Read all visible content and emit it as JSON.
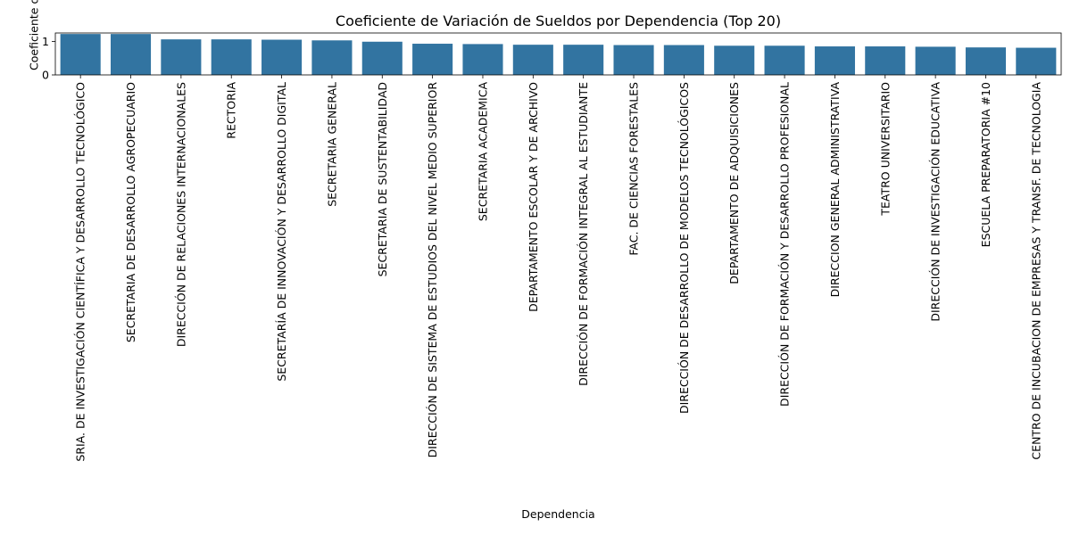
{
  "chart_data": {
    "type": "bar",
    "title": "Coeficiente de Variación de Sueldos por Dependencia (Top 20)",
    "xlabel": "Dependencia",
    "ylabel": "Coeficiente de Variación",
    "ylim": [
      0,
      1.25
    ],
    "yticks": [
      "0",
      "1"
    ],
    "grid": false,
    "bar_color": "#3274a1",
    "categories": [
      "SRIA. DE INVESTIGACIÓN CIENTÍFICA Y DESARROLLO TECNOLÓGICO",
      "SECRETARIA DE DESARROLLO AGROPECUARIO",
      "DIRECCIÓN DE RELACIONES INTERNACIONALES",
      "RECTORIA",
      "SECRETARÍA DE INNOVACIÓN Y DESARROLLO DIGITAL",
      "SECRETARIA GENERAL",
      "SECRETARIA DE SUSTENTABILIDAD",
      "DIRECCIÓN DE SISTEMA DE ESTUDIOS DEL NIVEL MEDIO SUPERIOR",
      "SECRETARIA ACADEMICA",
      "DEPARTAMENTO ESCOLAR Y DE ARCHIVO",
      "DIRECCIÓN DE FORMACIÓN INTEGRAL AL ESTUDIANTE",
      "FAC. DE CIENCIAS FORESTALES",
      "DIRECCIÓN DE DESARROLLO DE MODELOS TECNOLÓGICOS",
      "DEPARTAMENTO DE ADQUISICIONES",
      "DIRECCIÓN DE FORMACIÓN Y DESARROLLO PROFESIONAL",
      "DIRECCION GENERAL ADMINISTRATIVA",
      "TEATRO UNIVERSITARIO",
      "DIRECCIÓN DE INVESTIGACIÓN EDUCATIVA",
      "ESCUELA PREPARATORIA #10",
      "CENTRO DE INCUBACION DE EMPRESAS Y TRANSF. DE TECNOLOGIA"
    ],
    "values": [
      1.22,
      1.22,
      1.06,
      1.06,
      1.05,
      1.03,
      0.99,
      0.93,
      0.92,
      0.9,
      0.9,
      0.89,
      0.89,
      0.87,
      0.87,
      0.85,
      0.85,
      0.84,
      0.82,
      0.81
    ]
  }
}
